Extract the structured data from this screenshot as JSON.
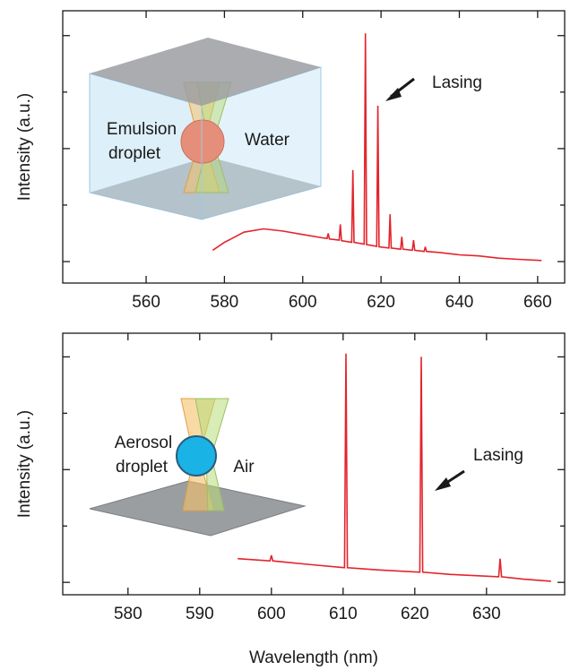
{
  "chart_data": [
    {
      "type": "line",
      "ylabel": "Intensity (a.u.)",
      "color": "#e3242b",
      "xlim": [
        538.7,
        666.9
      ],
      "ylim": [
        -0.19,
        2.22
      ],
      "xticks": [
        560,
        580,
        600,
        620,
        640,
        660
      ],
      "yticks": [
        0,
        0.5,
        1,
        1.5,
        2
      ],
      "x": [
        577,
        580,
        585,
        590,
        595,
        600,
        605,
        606.2,
        606.5,
        606.8,
        609.3,
        609.6,
        609.9,
        612.5,
        612.8,
        613.1,
        615.7,
        616,
        616.3,
        618.9,
        619.2,
        619.5,
        622,
        622.3,
        622.6,
        625,
        625.3,
        625.6,
        628,
        628.3,
        628.6,
        631,
        631.3,
        631.6,
        635,
        640,
        645,
        650,
        655,
        661
      ],
      "values": [
        0.1,
        0.17,
        0.26,
        0.29,
        0.27,
        0.24,
        0.21,
        0.205,
        0.25,
        0.2,
        0.19,
        0.33,
        0.185,
        0.17,
        0.81,
        0.17,
        0.155,
        2.02,
        0.15,
        0.135,
        1.38,
        0.13,
        0.12,
        0.42,
        0.12,
        0.11,
        0.22,
        0.11,
        0.1,
        0.19,
        0.1,
        0.09,
        0.13,
        0.09,
        0.08,
        0.06,
        0.05,
        0.03,
        0.02,
        0.01
      ],
      "annotations": [
        "Emulsion",
        "droplet",
        "Water",
        "Lasing"
      ]
    },
    {
      "type": "line",
      "xlabel": "Wavelength (nm)",
      "ylabel": "Intensity (a.u.)",
      "color": "#e3242b",
      "xlim": [
        570.9,
        640.9
      ],
      "ylim": [
        -0.11,
        2.21
      ],
      "xticks": [
        580,
        590,
        600,
        610,
        620,
        630
      ],
      "yticks": [
        0,
        0.5,
        1,
        1.5,
        2
      ],
      "x": [
        595.3,
        599.8,
        600,
        600.2,
        605,
        610.2,
        610.4,
        610.6,
        615,
        620.7,
        620.9,
        621.1,
        625,
        631.7,
        631.9,
        632.1,
        635,
        639
      ],
      "values": [
        0.21,
        0.19,
        0.24,
        0.19,
        0.16,
        0.13,
        2.03,
        0.13,
        0.11,
        0.09,
        2.0,
        0.09,
        0.07,
        0.05,
        0.21,
        0.05,
        0.03,
        0.01
      ],
      "annotations": [
        "Aerosol",
        "droplet",
        "Air",
        "Lasing"
      ]
    }
  ]
}
